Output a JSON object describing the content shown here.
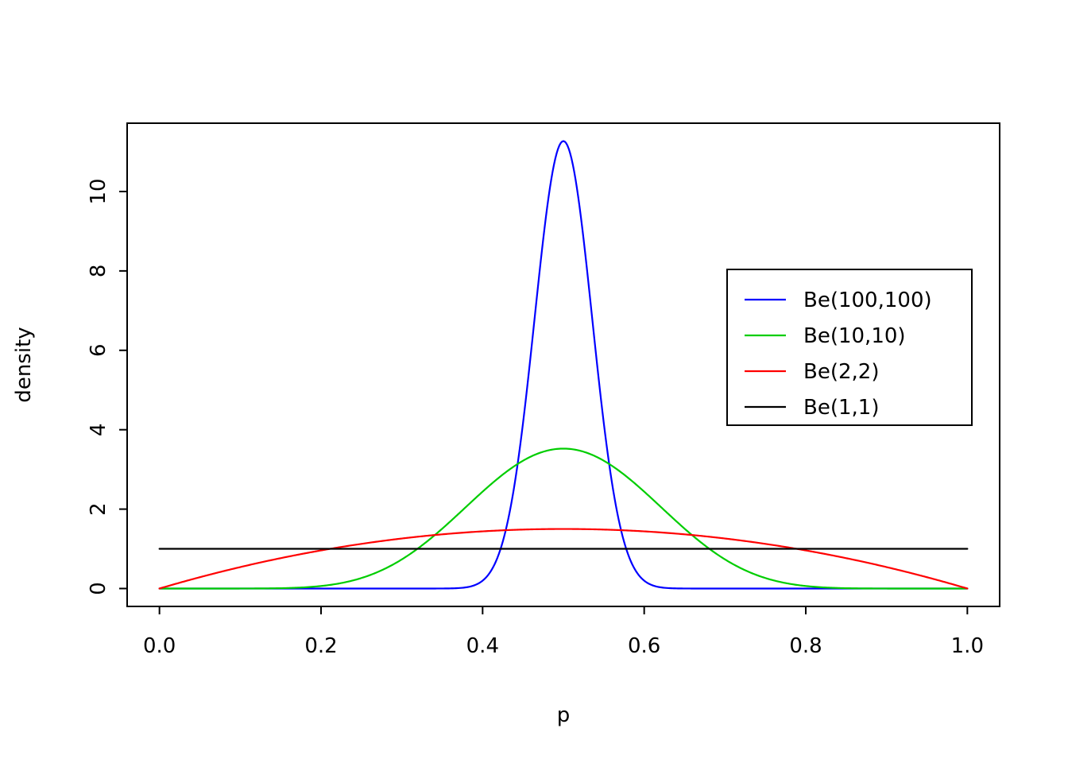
{
  "chart_data": {
    "type": "line",
    "title": "",
    "xlabel": "p",
    "ylabel": "density",
    "xlim": [
      0,
      1
    ],
    "ylim": [
      0,
      11.27
    ],
    "grid": false,
    "legend_position": "top-right",
    "x_tick_values": [
      0.0,
      0.2,
      0.4,
      0.6,
      0.8,
      1.0
    ],
    "x_tick_labels": [
      "0.0",
      "0.2",
      "0.4",
      "0.6",
      "0.8",
      "1.0"
    ],
    "y_tick_values": [
      0,
      2,
      4,
      6,
      8,
      10
    ],
    "y_tick_labels": [
      "0",
      "2",
      "4",
      "6",
      "8",
      "10"
    ],
    "curve_family": "Beta probability density function over p in [0,1]",
    "series": [
      {
        "name": "Be(100,100)",
        "color": "#0000ff",
        "alpha": 100,
        "beta": 100,
        "peak_x": 0.5,
        "peak_density": 11.27
      },
      {
        "name": "Be(10,10)",
        "color": "#00cd00",
        "alpha": 10,
        "beta": 10,
        "peak_x": 0.5,
        "peak_density": 3.52
      },
      {
        "name": "Be(2,2)",
        "color": "#ff0000",
        "alpha": 2,
        "beta": 2,
        "peak_x": 0.5,
        "peak_density": 1.5
      },
      {
        "name": "Be(1,1)",
        "color": "#000000",
        "alpha": 1,
        "beta": 1,
        "peak_x": 0.5,
        "peak_density": 1.0
      }
    ]
  }
}
